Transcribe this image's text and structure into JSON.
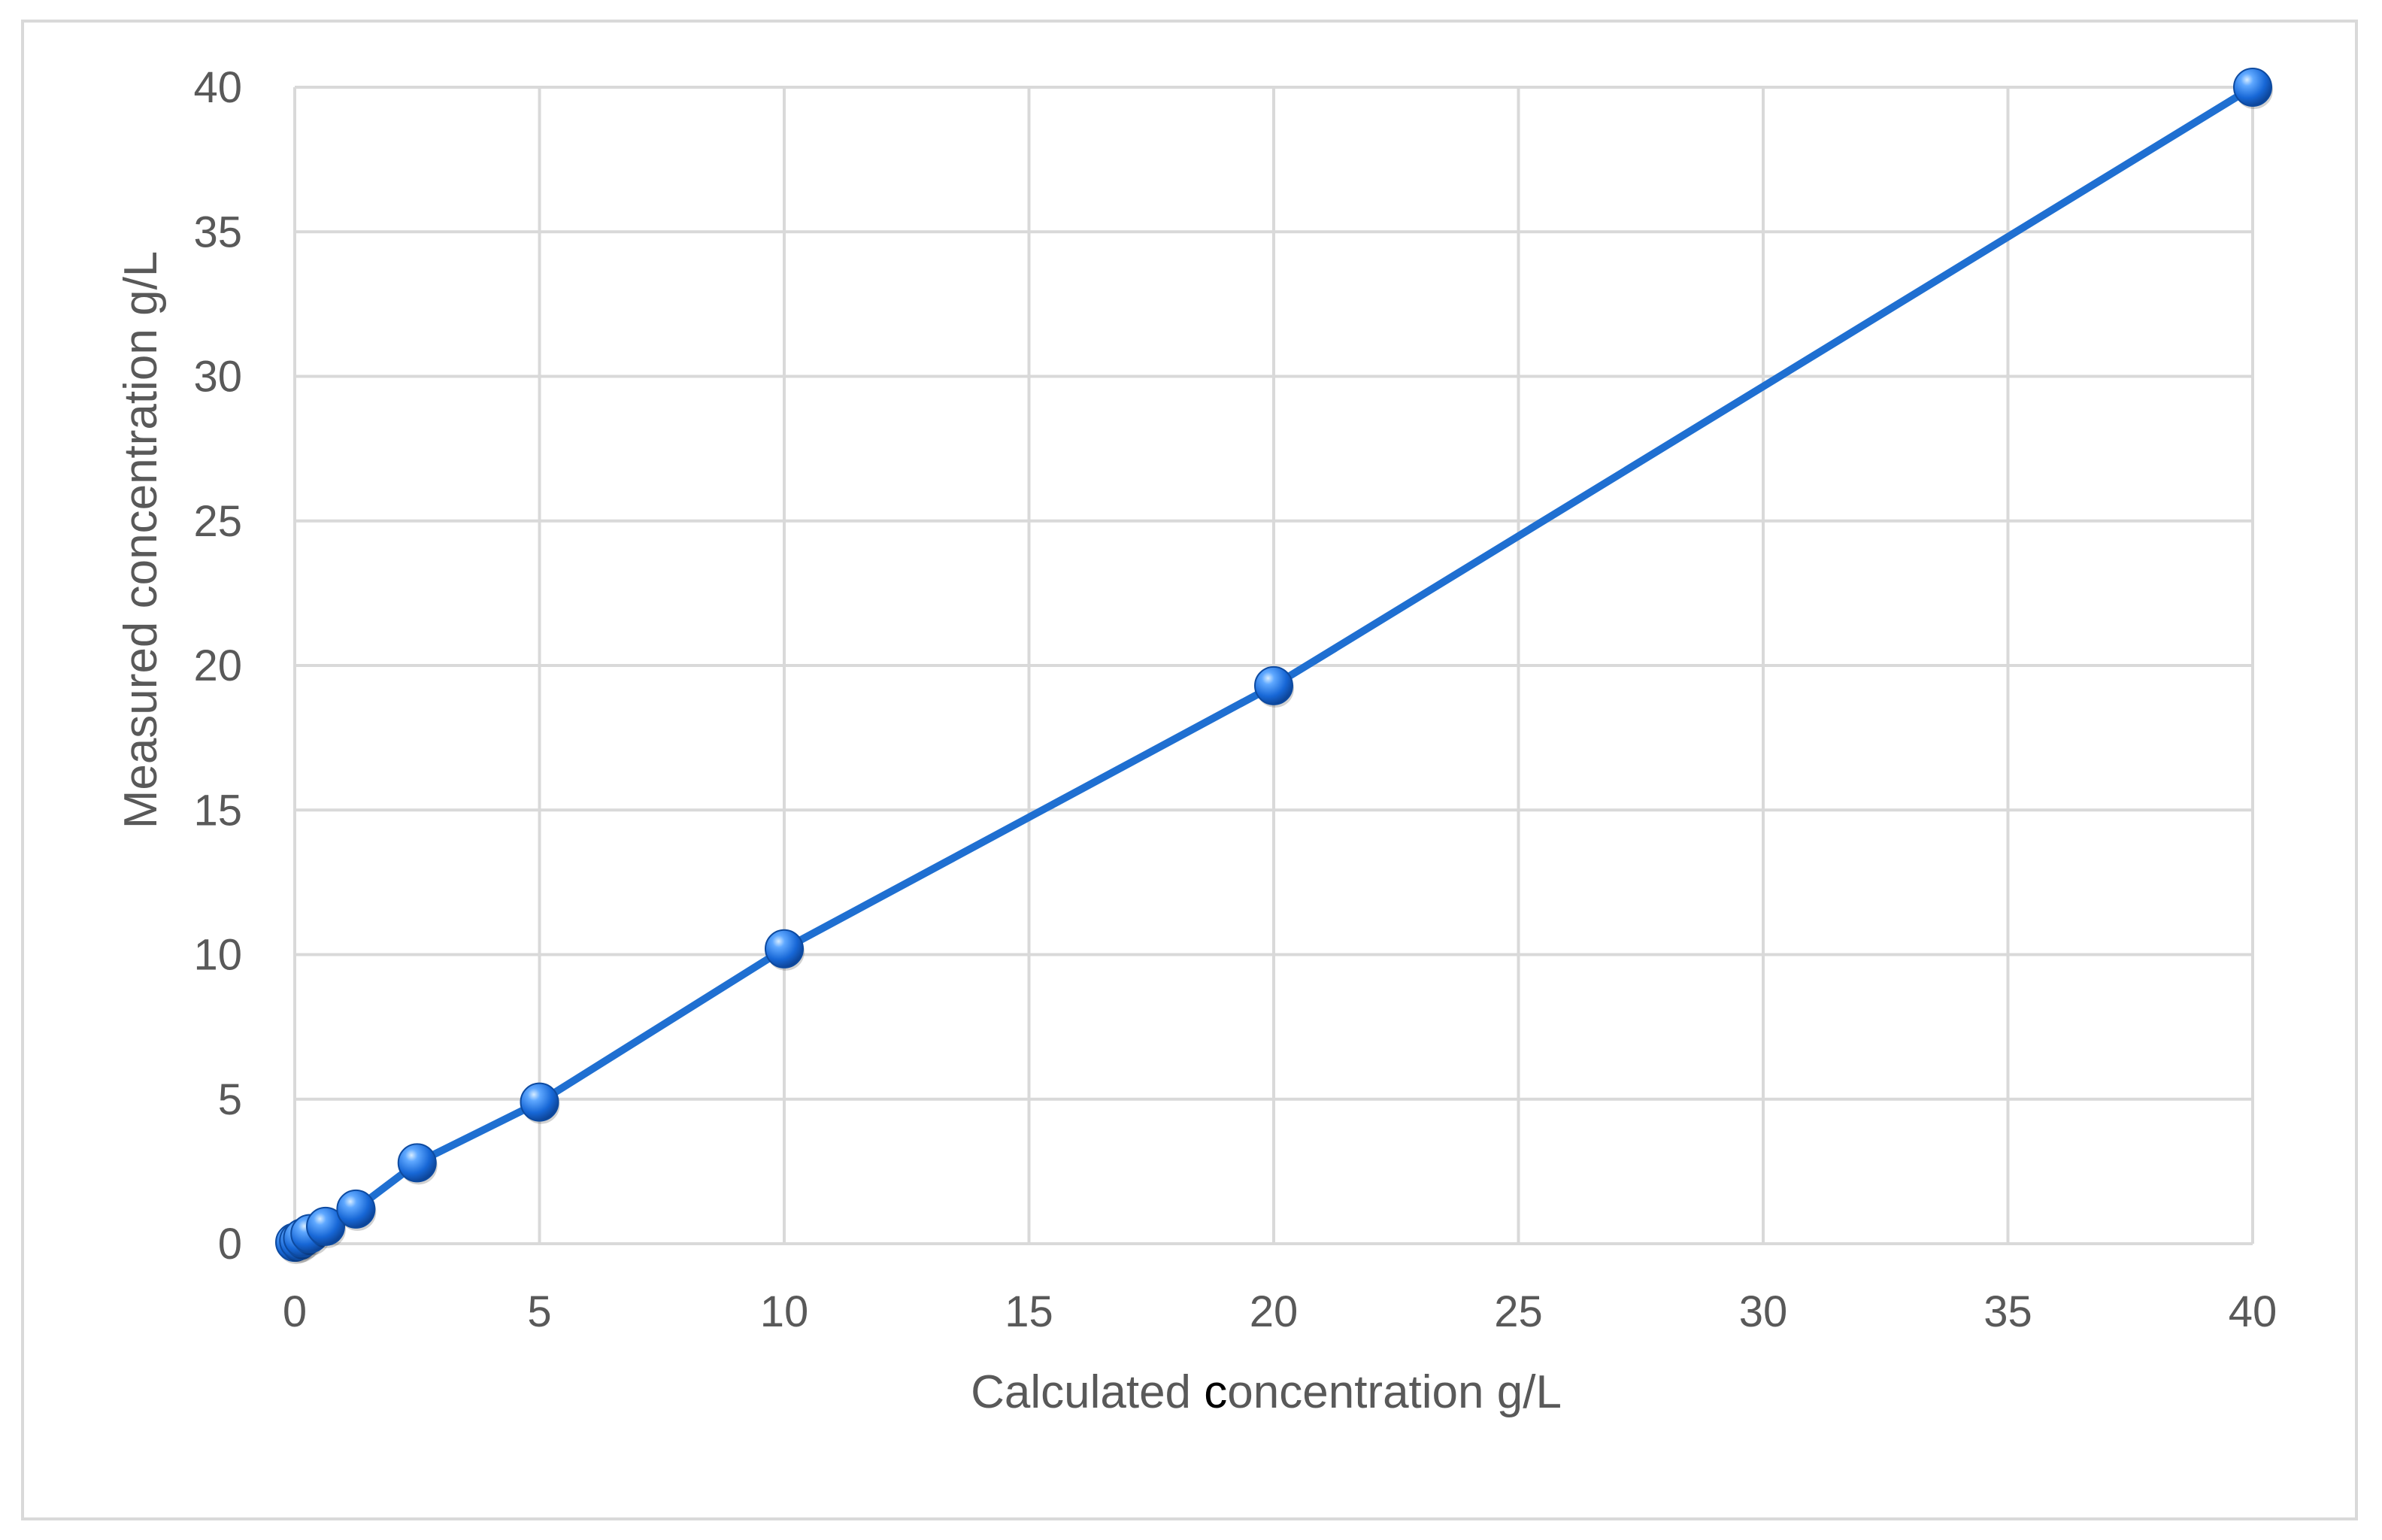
{
  "chart_data": {
    "type": "scatter",
    "title": "",
    "xlabel_parts": [
      {
        "text": "Calculated ",
        "emphasis": false
      },
      {
        "text": "c",
        "emphasis": true
      },
      {
        "text": "oncentration g/L",
        "emphasis": false
      }
    ],
    "xlabel": "Calculated concentration g/L",
    "ylabel": "Measured concentration g/L",
    "xlim": [
      0,
      40
    ],
    "ylim": [
      0,
      40
    ],
    "xticks": [
      0,
      5,
      10,
      15,
      20,
      25,
      30,
      35,
      40
    ],
    "yticks": [
      0,
      5,
      10,
      15,
      20,
      25,
      30,
      35,
      40
    ],
    "grid": true,
    "legend": "none",
    "series": [
      {
        "color": "#1f6fd1",
        "marker": "sphere",
        "line": "linear",
        "x": [
          0.0,
          0.08,
          0.16,
          0.31,
          0.63,
          1.25,
          2.5,
          5,
          10,
          20,
          40
        ],
        "y": [
          0.05,
          0.1,
          0.2,
          0.35,
          0.6,
          1.2,
          2.8,
          4.9,
          10.2,
          19.3,
          40.0
        ]
      }
    ]
  }
}
